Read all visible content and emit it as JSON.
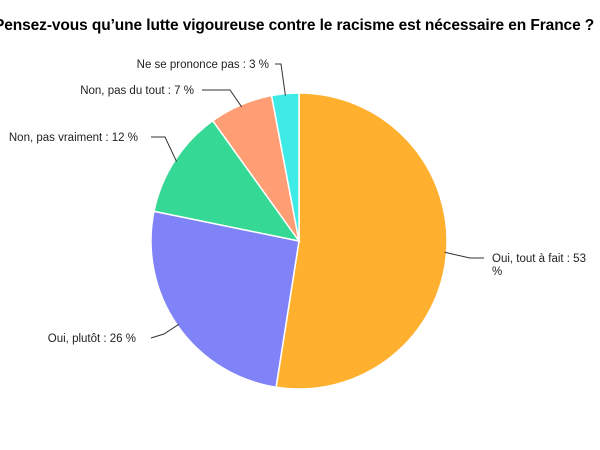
{
  "chart_data": {
    "type": "pie",
    "title": "Pensez-vous qu’une lutte vigoureuse contre le racisme est nécessaire en France ?",
    "slices": [
      {
        "label": "Oui, tout à fait : 53",
        "label2": "%",
        "value": 53,
        "color": "#FFB02E"
      },
      {
        "label": "Oui, plutôt : 26 %",
        "value": 26,
        "color": "#8083F8"
      },
      {
        "label": "Non, pas vraiment : 12 %",
        "value": 12,
        "color": "#35D894"
      },
      {
        "label": "Non, pas du tout : 7 %",
        "value": 7,
        "color": "#FF9E74"
      },
      {
        "label": "Ne se prononce pas : 3 %",
        "value": 3,
        "color": "#3EEBE6"
      }
    ],
    "start": "12 o'clock",
    "direction": "clockwise",
    "legend": "none"
  }
}
